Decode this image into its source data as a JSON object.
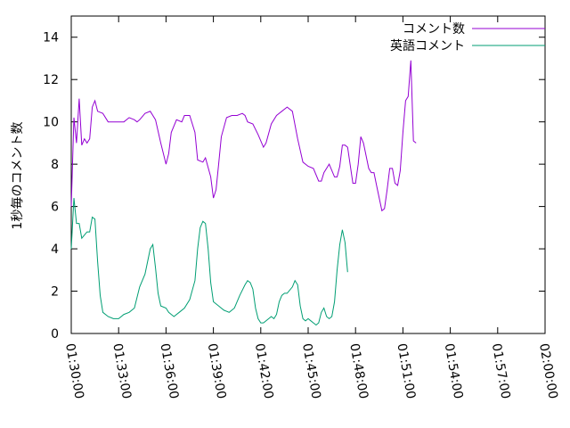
{
  "chart_data": {
    "type": "line",
    "title": "",
    "xlabel": "",
    "ylabel": "1秒毎のコメント数",
    "xlim": [
      "01:30:00",
      "02:00:00"
    ],
    "ylim": [
      0,
      15
    ],
    "x_ticks": [
      "01:30:00",
      "01:33:00",
      "01:36:00",
      "01:39:00",
      "01:42:00",
      "01:45:00",
      "01:48:00",
      "01:51:00",
      "01:54:00",
      "01:57:00",
      "02:00:00"
    ],
    "y_ticks": [
      0,
      2,
      4,
      6,
      8,
      10,
      12,
      14
    ],
    "grid": false,
    "legend_position": "top-right",
    "series": [
      {
        "name": "コメント数",
        "color": "#9400d3",
        "points": [
          [
            "01:30:00",
            6.0
          ],
          [
            "01:30:10",
            10.2
          ],
          [
            "01:30:20",
            9.0
          ],
          [
            "01:30:30",
            11.1
          ],
          [
            "01:30:40",
            8.9
          ],
          [
            "01:30:50",
            9.2
          ],
          [
            "01:31:00",
            9.0
          ],
          [
            "01:31:10",
            9.2
          ],
          [
            "01:31:20",
            10.7
          ],
          [
            "01:31:30",
            11.0
          ],
          [
            "01:31:40",
            10.5
          ],
          [
            "01:32:00",
            10.4
          ],
          [
            "01:32:20",
            10.0
          ],
          [
            "01:33:00",
            10.0
          ],
          [
            "01:33:20",
            10.0
          ],
          [
            "01:33:40",
            10.2
          ],
          [
            "01:34:00",
            10.1
          ],
          [
            "01:34:10",
            10.0
          ],
          [
            "01:34:20",
            10.1
          ],
          [
            "01:34:40",
            10.4
          ],
          [
            "01:35:00",
            10.5
          ],
          [
            "01:35:20",
            10.1
          ],
          [
            "01:35:40",
            9.0
          ],
          [
            "01:36:00",
            8.0
          ],
          [
            "01:36:10",
            8.5
          ],
          [
            "01:36:20",
            9.5
          ],
          [
            "01:36:40",
            10.1
          ],
          [
            "01:37:00",
            10.0
          ],
          [
            "01:37:10",
            10.3
          ],
          [
            "01:37:30",
            10.3
          ],
          [
            "01:37:50",
            9.5
          ],
          [
            "01:38:00",
            8.2
          ],
          [
            "01:38:20",
            8.1
          ],
          [
            "01:38:30",
            8.3
          ],
          [
            "01:38:50",
            7.4
          ],
          [
            "01:39:00",
            6.4
          ],
          [
            "01:39:10",
            6.8
          ],
          [
            "01:39:20",
            8.0
          ],
          [
            "01:39:30",
            9.3
          ],
          [
            "01:39:50",
            10.2
          ],
          [
            "01:40:10",
            10.3
          ],
          [
            "01:40:30",
            10.3
          ],
          [
            "01:40:50",
            10.4
          ],
          [
            "01:41:00",
            10.3
          ],
          [
            "01:41:10",
            10.0
          ],
          [
            "01:41:30",
            9.9
          ],
          [
            "01:41:50",
            9.4
          ],
          [
            "01:42:10",
            8.8
          ],
          [
            "01:42:20",
            9.0
          ],
          [
            "01:42:40",
            9.9
          ],
          [
            "01:43:00",
            10.3
          ],
          [
            "01:43:20",
            10.5
          ],
          [
            "01:43:40",
            10.7
          ],
          [
            "01:44:00",
            10.5
          ],
          [
            "01:44:20",
            9.2
          ],
          [
            "01:44:40",
            8.1
          ],
          [
            "01:45:00",
            7.9
          ],
          [
            "01:45:20",
            7.8
          ],
          [
            "01:45:40",
            7.2
          ],
          [
            "01:45:50",
            7.2
          ],
          [
            "01:46:00",
            7.6
          ],
          [
            "01:46:20",
            8.0
          ],
          [
            "01:46:40",
            7.4
          ],
          [
            "01:46:50",
            7.4
          ],
          [
            "01:47:00",
            7.9
          ],
          [
            "01:47:10",
            8.9
          ],
          [
            "01:47:20",
            8.9
          ],
          [
            "01:47:30",
            8.8
          ],
          [
            "01:47:50",
            7.1
          ],
          [
            "01:48:00",
            7.1
          ],
          [
            "01:48:10",
            8.0
          ],
          [
            "01:48:20",
            9.3
          ],
          [
            "01:48:30",
            9.0
          ],
          [
            "01:48:50",
            7.8
          ],
          [
            "01:49:00",
            7.6
          ],
          [
            "01:49:10",
            7.6
          ],
          [
            "01:49:20",
            7.0
          ],
          [
            "01:49:40",
            5.8
          ],
          [
            "01:49:50",
            5.9
          ],
          [
            "01:50:00",
            6.8
          ],
          [
            "01:50:10",
            7.8
          ],
          [
            "01:50:20",
            7.8
          ],
          [
            "01:50:30",
            7.1
          ],
          [
            "01:50:40",
            7.0
          ],
          [
            "01:50:50",
            7.7
          ],
          [
            "01:51:00",
            9.5
          ],
          [
            "01:51:10",
            11.0
          ],
          [
            "01:51:20",
            11.2
          ],
          [
            "01:51:30",
            12.9
          ],
          [
            "01:51:40",
            9.1
          ],
          [
            "01:51:50",
            9.0
          ]
        ]
      },
      {
        "name": "英語コメント",
        "color": "#009e73",
        "points": [
          [
            "01:30:00",
            4.0
          ],
          [
            "01:30:10",
            6.4
          ],
          [
            "01:30:20",
            5.2
          ],
          [
            "01:30:30",
            5.2
          ],
          [
            "01:30:40",
            4.5
          ],
          [
            "01:31:00",
            4.8
          ],
          [
            "01:31:10",
            4.8
          ],
          [
            "01:31:20",
            5.5
          ],
          [
            "01:31:30",
            5.4
          ],
          [
            "01:31:40",
            3.4
          ],
          [
            "01:31:50",
            1.8
          ],
          [
            "01:32:00",
            1.0
          ],
          [
            "01:32:20",
            0.8
          ],
          [
            "01:32:40",
            0.7
          ],
          [
            "01:33:00",
            0.7
          ],
          [
            "01:33:20",
            0.9
          ],
          [
            "01:33:40",
            1.0
          ],
          [
            "01:34:00",
            1.2
          ],
          [
            "01:34:20",
            2.2
          ],
          [
            "01:34:40",
            2.8
          ],
          [
            "01:35:00",
            4.0
          ],
          [
            "01:35:10",
            4.2
          ],
          [
            "01:35:20",
            3.1
          ],
          [
            "01:35:30",
            1.9
          ],
          [
            "01:35:40",
            1.3
          ],
          [
            "01:36:00",
            1.2
          ],
          [
            "01:36:10",
            1.0
          ],
          [
            "01:36:20",
            0.9
          ],
          [
            "01:36:30",
            0.8
          ],
          [
            "01:36:50",
            1.0
          ],
          [
            "01:37:10",
            1.2
          ],
          [
            "01:37:30",
            1.6
          ],
          [
            "01:37:50",
            2.5
          ],
          [
            "01:38:00",
            4.0
          ],
          [
            "01:38:10",
            5.0
          ],
          [
            "01:38:20",
            5.3
          ],
          [
            "01:38:30",
            5.2
          ],
          [
            "01:38:40",
            4.0
          ],
          [
            "01:38:50",
            2.4
          ],
          [
            "01:39:00",
            1.5
          ],
          [
            "01:39:20",
            1.3
          ],
          [
            "01:39:40",
            1.1
          ],
          [
            "01:40:00",
            1.0
          ],
          [
            "01:40:20",
            1.2
          ],
          [
            "01:40:40",
            1.8
          ],
          [
            "01:41:00",
            2.3
          ],
          [
            "01:41:10",
            2.5
          ],
          [
            "01:41:20",
            2.4
          ],
          [
            "01:41:30",
            2.1
          ],
          [
            "01:41:40",
            1.2
          ],
          [
            "01:41:50",
            0.7
          ],
          [
            "01:42:00",
            0.5
          ],
          [
            "01:42:10",
            0.5
          ],
          [
            "01:42:30",
            0.7
          ],
          [
            "01:42:40",
            0.8
          ],
          [
            "01:42:50",
            0.7
          ],
          [
            "01:43:00",
            0.9
          ],
          [
            "01:43:10",
            1.5
          ],
          [
            "01:43:20",
            1.8
          ],
          [
            "01:43:30",
            1.9
          ],
          [
            "01:43:40",
            1.9
          ],
          [
            "01:44:00",
            2.2
          ],
          [
            "01:44:10",
            2.5
          ],
          [
            "01:44:20",
            2.3
          ],
          [
            "01:44:30",
            1.3
          ],
          [
            "01:44:40",
            0.7
          ],
          [
            "01:44:50",
            0.6
          ],
          [
            "01:45:00",
            0.7
          ],
          [
            "01:45:10",
            0.6
          ],
          [
            "01:45:20",
            0.5
          ],
          [
            "01:45:30",
            0.4
          ],
          [
            "01:45:40",
            0.5
          ],
          [
            "01:45:50",
            1.0
          ],
          [
            "01:46:00",
            1.2
          ],
          [
            "01:46:10",
            0.8
          ],
          [
            "01:46:20",
            0.7
          ],
          [
            "01:46:30",
            0.8
          ],
          [
            "01:46:40",
            1.5
          ],
          [
            "01:46:50",
            3.0
          ],
          [
            "01:47:00",
            4.2
          ],
          [
            "01:47:10",
            4.9
          ],
          [
            "01:47:20",
            4.3
          ],
          [
            "01:47:30",
            2.9
          ]
        ]
      }
    ]
  }
}
